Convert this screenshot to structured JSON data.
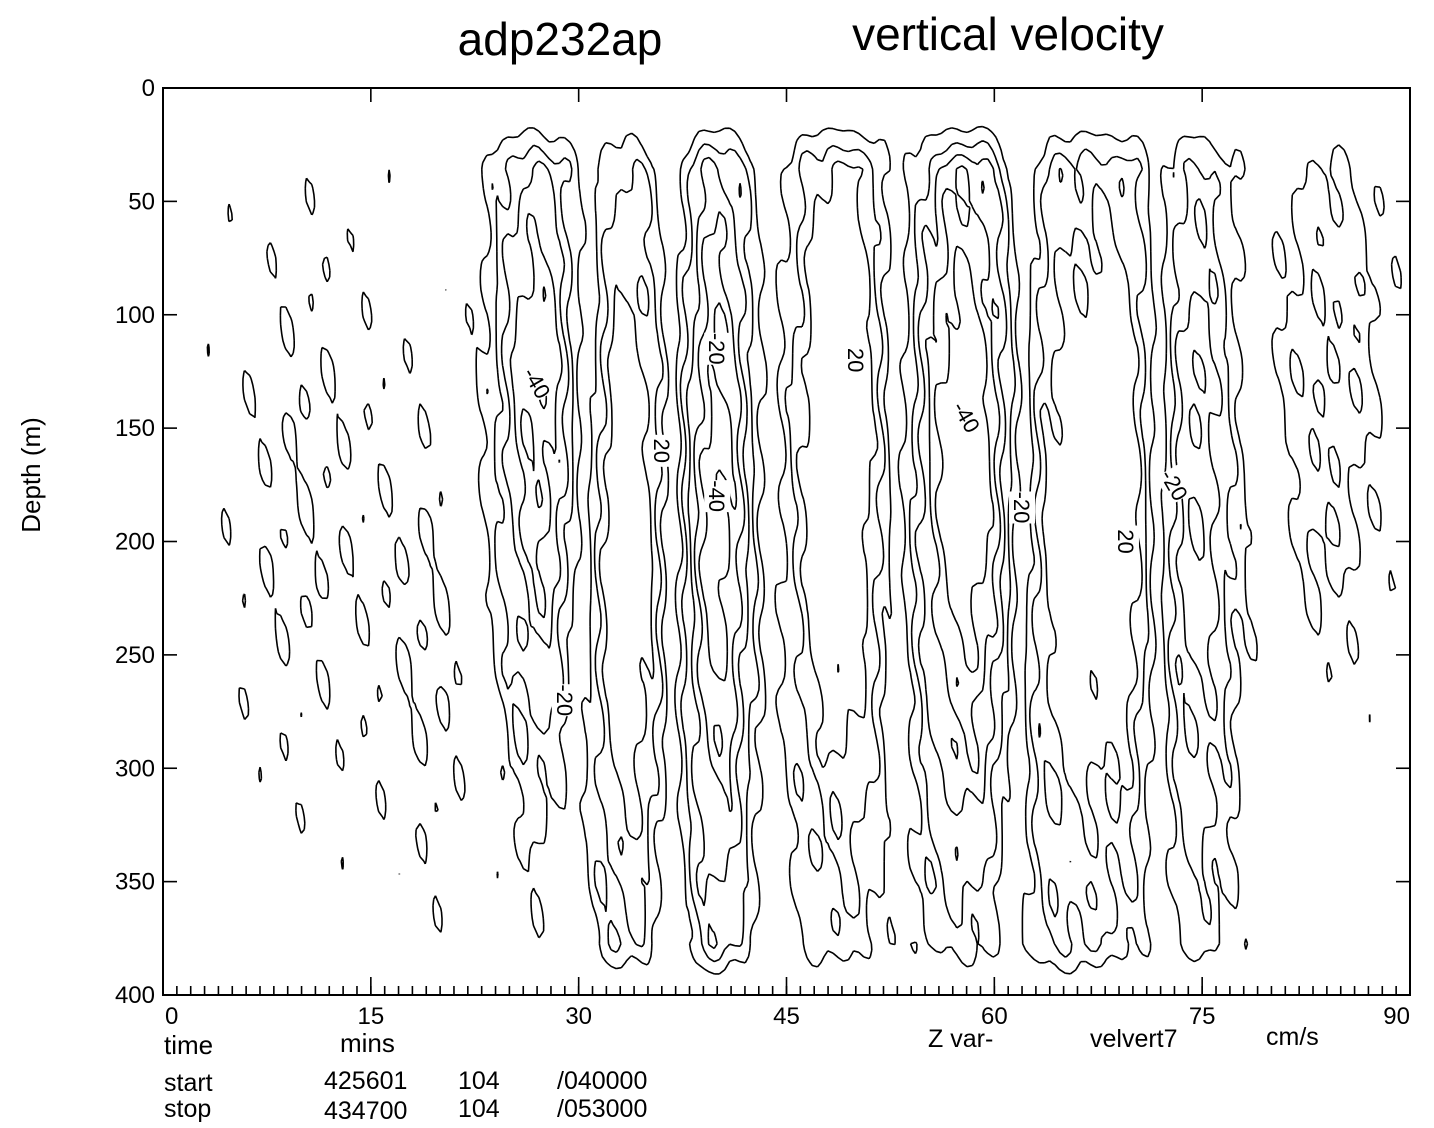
{
  "chart_data": {
    "type": "contour",
    "title_left": "adp232ap",
    "title_right": "vertical velocity",
    "ylabel": "Depth (m)",
    "xlabel": "time",
    "x_unit": "mins",
    "z_var_label": "Z var-",
    "z_var_name": "velvert7",
    "z_unit": "cm/s",
    "xlim": [
      0,
      90
    ],
    "ylim": [
      0,
      400
    ],
    "y_inverted": true,
    "x_ticks": [
      "0",
      "15",
      "30",
      "45",
      "60",
      "75",
      "90"
    ],
    "x_tick_values": [
      0,
      15,
      30,
      45,
      60,
      75,
      90
    ],
    "y_ticks": [
      "0",
      "50",
      "100",
      "150",
      "200",
      "250",
      "300",
      "350",
      "400"
    ],
    "y_tick_values": [
      0,
      50,
      100,
      150,
      200,
      250,
      300,
      350,
      400
    ],
    "contour_labels": [
      {
        "text": "-40",
        "x": 27,
        "y": 130,
        "angle": 60
      },
      {
        "text": "-20",
        "x": 29,
        "y": 270,
        "angle": 90
      },
      {
        "text": "-20",
        "x": 40,
        "y": 115,
        "angle": 90
      },
      {
        "text": "20",
        "x": 36,
        "y": 160,
        "angle": 90
      },
      {
        "text": "-40",
        "x": 40,
        "y": 180,
        "angle": 90
      },
      {
        "text": "20",
        "x": 50,
        "y": 120,
        "angle": 90
      },
      {
        "text": "-40",
        "x": 58,
        "y": 145,
        "angle": 60
      },
      {
        "text": "-20",
        "x": 62,
        "y": 185,
        "angle": 90
      },
      {
        "text": "20",
        "x": 69.5,
        "y": 200,
        "angle": 90
      },
      {
        "text": "-20",
        "x": 73,
        "y": 175,
        "angle": 60
      }
    ]
  },
  "meta": {
    "start_label": "start",
    "stop_label": "stop",
    "start_values": [
      "425601",
      "104",
      "/040000"
    ],
    "stop_values": [
      "434700",
      "104",
      "/053000"
    ]
  }
}
